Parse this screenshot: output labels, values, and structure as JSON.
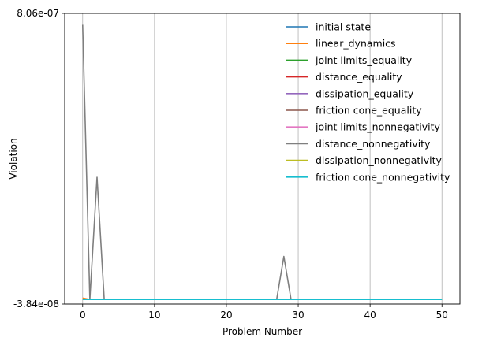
{
  "chart_data": {
    "type": "line",
    "title": "",
    "xlabel": "Problem Number",
    "ylabel": "Violation",
    "xlim": [
      -2.5,
      52.5
    ],
    "ylim": [
      -3.84e-08,
      8.06e-07
    ],
    "x_ticks": [
      0,
      10,
      20,
      30,
      40,
      50
    ],
    "x_tick_labels": [
      "0",
      "10",
      "20",
      "30",
      "40",
      "50"
    ],
    "y_ticks": [
      -3.84e-08,
      8.06e-07
    ],
    "y_tick_labels": [
      "-3.84e-08",
      "8.06e-07"
    ],
    "grid": "x-major",
    "legend": "top-right",
    "series": [
      {
        "name": "initial state",
        "color": "#1f77b4",
        "x": [
          0,
          50
        ],
        "y": [
          -2.5e-08,
          -2.5e-08
        ]
      },
      {
        "name": "linear_dynamics",
        "color": "#ff7f0e",
        "x": [
          0,
          1,
          50
        ],
        "y": [
          -2.1e-08,
          -2.5e-08,
          -2.5e-08
        ]
      },
      {
        "name": "joint limits_equality",
        "color": "#2ca02c",
        "x": [
          0,
          50
        ],
        "y": [
          -2.5e-08,
          -2.5e-08
        ]
      },
      {
        "name": "distance_equality",
        "color": "#d62728",
        "x": [
          0,
          50
        ],
        "y": [
          -2.5e-08,
          -2.5e-08
        ]
      },
      {
        "name": "dissipation_equality",
        "color": "#9467bd",
        "x": [
          0,
          50
        ],
        "y": [
          -2.5e-08,
          -2.5e-08
        ]
      },
      {
        "name": "friction cone_equality",
        "color": "#8c564b",
        "x": [
          0,
          50
        ],
        "y": [
          -2.5e-08,
          -2.5e-08
        ]
      },
      {
        "name": "joint limits_nonnegativity",
        "color": "#e377c2",
        "x": [
          0,
          50
        ],
        "y": [
          -2.5e-08,
          -2.5e-08
        ]
      },
      {
        "name": "distance_nonnegativity",
        "color": "#7f7f7f",
        "x": [
          0,
          1,
          2,
          3,
          4,
          27,
          28,
          29,
          30,
          50
        ],
        "y": [
          7.73e-07,
          -2.5e-08,
          3.3e-07,
          -2.5e-08,
          -2.5e-08,
          -2.5e-08,
          1e-07,
          -2.5e-08,
          -2.5e-08,
          -2.5e-08
        ]
      },
      {
        "name": "dissipation_nonnegativity",
        "color": "#bcbd22",
        "x": [
          0,
          50
        ],
        "y": [
          -2.5e-08,
          -2.5e-08
        ]
      },
      {
        "name": "friction cone_nonnegativity",
        "color": "#17becf",
        "x": [
          0,
          50
        ],
        "y": [
          -2.5e-08,
          -2.5e-08
        ]
      }
    ]
  }
}
